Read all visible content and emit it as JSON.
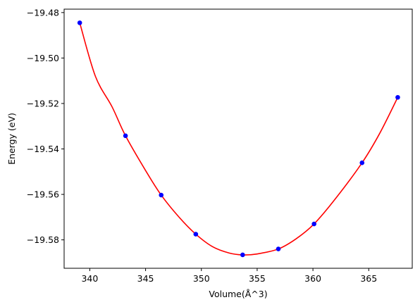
{
  "chart_data": {
    "type": "scatter",
    "title": "",
    "xlabel": "Volume(Å^3)",
    "ylabel": "Energy (eV)",
    "xlim": [
      337.7,
      368.9
    ],
    "ylim": [
      -19.5925,
      -19.4785
    ],
    "xticks": [
      340,
      345,
      350,
      355,
      360,
      365
    ],
    "xtick_labels": [
      "340",
      "345",
      "350",
      "355",
      "360",
      "365"
    ],
    "yticks": [
      -19.48,
      -19.5,
      -19.52,
      -19.54,
      -19.56,
      -19.58
    ],
    "ytick_labels": [
      "−19.48",
      "−19.50",
      "−19.52",
      "−19.54",
      "−19.56",
      "−19.58"
    ],
    "grid": false,
    "series": [
      {
        "kind": "points",
        "color": "#0000ff",
        "x": [
          339.1,
          343.2,
          346.4,
          349.5,
          353.7,
          356.9,
          360.1,
          364.4,
          367.6
        ],
        "y": [
          -19.4845,
          -19.5342,
          -19.5603,
          -19.5775,
          -19.5866,
          -19.584,
          -19.573,
          -19.5461,
          -19.5173
        ]
      },
      {
        "kind": "fit-curve",
        "color": "#ff0000",
        "x": [
          339.1,
          340.5,
          342.0,
          343.2,
          345.0,
          346.4,
          348.0,
          349.5,
          351.0,
          352.5,
          353.7,
          355.0,
          356.9,
          358.5,
          360.1,
          362.0,
          364.4,
          366.0,
          367.6
        ],
        "y": [
          -19.4845,
          -19.508,
          -19.5215,
          -19.5342,
          -19.5495,
          -19.5603,
          -19.57,
          -19.5775,
          -19.583,
          -19.5858,
          -19.5866,
          -19.5862,
          -19.584,
          -19.5795,
          -19.573,
          -19.562,
          -19.5461,
          -19.533,
          -19.5173
        ]
      }
    ]
  }
}
